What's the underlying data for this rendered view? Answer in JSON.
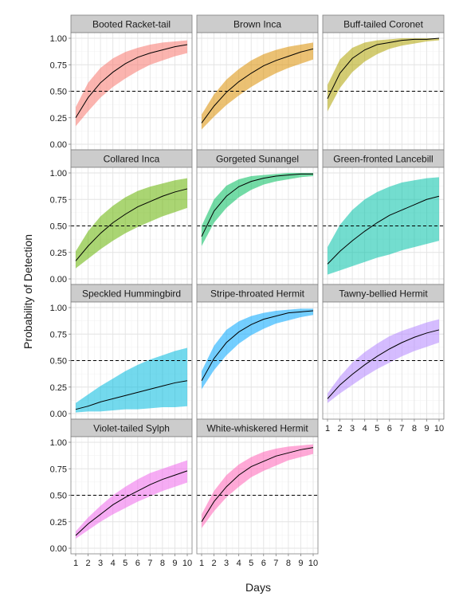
{
  "chart_data": {
    "type": "line",
    "xlabel": "Days",
    "ylabel": "Probability of Detection",
    "x": [
      1,
      2,
      3,
      4,
      5,
      6,
      7,
      8,
      9,
      10
    ],
    "xlim": [
      1,
      10
    ],
    "ylim": [
      0,
      1
    ],
    "yticks": [
      0.0,
      0.25,
      0.5,
      0.75,
      1.0
    ],
    "ytick_labels": [
      "0.00",
      "0.25",
      "0.50",
      "0.75",
      "1.00"
    ],
    "xtick_labels": [
      "1",
      "2",
      "3",
      "4",
      "5",
      "6",
      "7",
      "8",
      "9",
      "10"
    ],
    "reference_line": 0.5,
    "grid": true,
    "layout": "facet grid, 3 columns",
    "panels": [
      {
        "title": "Booted Racket-tail",
        "color": "#F8766D",
        "values": [
          0.25,
          0.44,
          0.58,
          0.68,
          0.76,
          0.82,
          0.86,
          0.89,
          0.92,
          0.94
        ],
        "lower": [
          0.17,
          0.31,
          0.44,
          0.54,
          0.62,
          0.69,
          0.75,
          0.79,
          0.83,
          0.86
        ],
        "upper": [
          0.35,
          0.58,
          0.72,
          0.81,
          0.87,
          0.91,
          0.94,
          0.96,
          0.97,
          0.98
        ]
      },
      {
        "title": "Brown Inca",
        "color": "#DB8E00",
        "values": [
          0.2,
          0.36,
          0.49,
          0.59,
          0.67,
          0.74,
          0.79,
          0.83,
          0.87,
          0.9
        ],
        "lower": [
          0.14,
          0.26,
          0.37,
          0.46,
          0.54,
          0.61,
          0.67,
          0.72,
          0.76,
          0.8
        ],
        "upper": [
          0.28,
          0.47,
          0.61,
          0.71,
          0.79,
          0.85,
          0.89,
          0.92,
          0.94,
          0.96
        ]
      },
      {
        "title": "Buff-tailed Coronet",
        "color": "#AEA200",
        "values": [
          0.43,
          0.67,
          0.81,
          0.89,
          0.94,
          0.96,
          0.98,
          0.99,
          0.99,
          1.0
        ],
        "lower": [
          0.31,
          0.53,
          0.68,
          0.78,
          0.85,
          0.9,
          0.93,
          0.95,
          0.97,
          0.98
        ],
        "upper": [
          0.56,
          0.8,
          0.91,
          0.96,
          0.98,
          0.99,
          1.0,
          1.0,
          1.0,
          1.0
        ]
      },
      {
        "title": "Collared Inca",
        "color": "#64B200",
        "values": [
          0.17,
          0.31,
          0.43,
          0.53,
          0.61,
          0.68,
          0.73,
          0.78,
          0.82,
          0.85
        ],
        "lower": [
          0.1,
          0.19,
          0.28,
          0.36,
          0.43,
          0.49,
          0.54,
          0.59,
          0.63,
          0.67
        ],
        "upper": [
          0.26,
          0.45,
          0.59,
          0.69,
          0.77,
          0.83,
          0.87,
          0.9,
          0.93,
          0.95
        ]
      },
      {
        "title": "Gorgeted Sunangel",
        "color": "#00BD5C",
        "values": [
          0.4,
          0.64,
          0.78,
          0.87,
          0.92,
          0.95,
          0.97,
          0.98,
          0.99,
          0.99
        ],
        "lower": [
          0.31,
          0.53,
          0.67,
          0.77,
          0.84,
          0.89,
          0.92,
          0.94,
          0.96,
          0.97
        ],
        "upper": [
          0.5,
          0.75,
          0.88,
          0.94,
          0.97,
          0.98,
          0.99,
          1.0,
          1.0,
          1.0
        ]
      },
      {
        "title": "Green-fronted Lancebill",
        "color": "#00C1A7",
        "values": [
          0.14,
          0.26,
          0.36,
          0.45,
          0.53,
          0.6,
          0.65,
          0.7,
          0.75,
          0.78
        ],
        "lower": [
          0.04,
          0.08,
          0.12,
          0.16,
          0.2,
          0.23,
          0.27,
          0.3,
          0.33,
          0.36
        ],
        "upper": [
          0.3,
          0.51,
          0.65,
          0.75,
          0.82,
          0.87,
          0.91,
          0.93,
          0.95,
          0.96
        ]
      },
      {
        "title": "Speckled Hummingbird",
        "color": "#00BADE",
        "values": [
          0.04,
          0.07,
          0.11,
          0.14,
          0.17,
          0.2,
          0.23,
          0.26,
          0.29,
          0.31
        ],
        "lower": [
          0.01,
          0.02,
          0.02,
          0.03,
          0.04,
          0.04,
          0.05,
          0.06,
          0.06,
          0.07
        ],
        "upper": [
          0.1,
          0.18,
          0.26,
          0.33,
          0.4,
          0.46,
          0.51,
          0.55,
          0.59,
          0.62
        ]
      },
      {
        "title": "Stripe-throated Hermit",
        "color": "#00A6FF",
        "values": [
          0.31,
          0.52,
          0.67,
          0.77,
          0.84,
          0.89,
          0.92,
          0.95,
          0.96,
          0.97
        ],
        "lower": [
          0.23,
          0.41,
          0.55,
          0.66,
          0.74,
          0.8,
          0.85,
          0.88,
          0.91,
          0.93
        ],
        "upper": [
          0.4,
          0.64,
          0.79,
          0.87,
          0.92,
          0.95,
          0.97,
          0.98,
          0.99,
          0.99
        ]
      },
      {
        "title": "Tawny-bellied Hermit",
        "color": "#B385FF",
        "values": [
          0.14,
          0.27,
          0.37,
          0.46,
          0.54,
          0.61,
          0.67,
          0.72,
          0.76,
          0.79
        ],
        "lower": [
          0.1,
          0.19,
          0.27,
          0.35,
          0.42,
          0.48,
          0.54,
          0.59,
          0.63,
          0.67
        ],
        "upper": [
          0.19,
          0.35,
          0.48,
          0.58,
          0.66,
          0.73,
          0.78,
          0.82,
          0.86,
          0.89
        ]
      },
      {
        "title": "Violet-tailed Sylph",
        "color": "#EF67EB",
        "values": [
          0.12,
          0.23,
          0.32,
          0.41,
          0.48,
          0.54,
          0.6,
          0.65,
          0.69,
          0.73
        ],
        "lower": [
          0.09,
          0.17,
          0.25,
          0.32,
          0.38,
          0.44,
          0.49,
          0.54,
          0.58,
          0.62
        ],
        "upper": [
          0.16,
          0.29,
          0.4,
          0.5,
          0.58,
          0.65,
          0.71,
          0.75,
          0.79,
          0.83
        ]
      },
      {
        "title": "White-whiskered Hermit",
        "color": "#FF63B6",
        "values": [
          0.25,
          0.44,
          0.58,
          0.69,
          0.77,
          0.82,
          0.87,
          0.9,
          0.93,
          0.95
        ],
        "lower": [
          0.19,
          0.35,
          0.48,
          0.58,
          0.67,
          0.73,
          0.78,
          0.83,
          0.86,
          0.89
        ],
        "upper": [
          0.32,
          0.54,
          0.69,
          0.79,
          0.86,
          0.91,
          0.94,
          0.96,
          0.97,
          0.98
        ]
      }
    ]
  }
}
